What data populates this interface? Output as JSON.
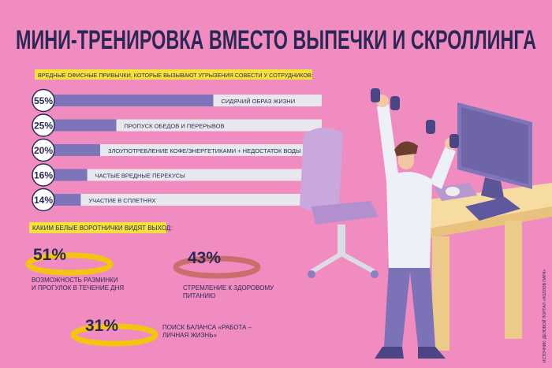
{
  "title": "МИНИ-ТРЕНИРОВКА ВМЕСТО ВЫПЕЧКИ И СКРОЛЛИНГА",
  "source": "ИСТОЧНИК: ДЕЛОВОЙ ПОРТАЛ «ХОЛЛОВ.ПАРК»",
  "chart_data": [
    {
      "type": "bar",
      "subtitle": "ВРЕДНЫЕ ОФИСНЫЕ ПРИВЫЧКИ, КОТОРЫЕ ВЫЗЫВАЮТ УГРЫЗЕНИЯ СОВЕСТИ У СОТРУДНИКОВ:",
      "categories": [
        "СИДЯЧИЙ ОБРАЗ ЖИЗНИ",
        "ПРОПУСК ОБЕДОВ И ПЕРЕРЫВОВ",
        "ЗЛОУПОТРЕБЛЕНИЕ КОФЕ/ЭНЕРГЕТИКАМИ + НЕДОСТАТОК ВОДЫ",
        "ЧАСТЫЕ ВРЕДНЫЕ ПЕРЕКУСЫ",
        "УЧАСТИЕ В СПЛЕТНЯХ"
      ],
      "values": [
        55,
        25,
        20,
        16,
        14
      ],
      "value_labels": [
        "55%",
        "25%",
        "20%",
        "16%",
        "14%"
      ],
      "color": "#7d74b9"
    },
    {
      "type": "ring",
      "subtitle": "КАКИМ БЕЛЫЕ ВОРОТНИЧКИ ВИДЯТ ВЫХОД:",
      "categories": [
        [
          "ВОЗМОЖНОСТЬ РАЗМИНКИ",
          "И ПРОГУЛОК В ТЕЧЕНИЕ ДНЯ"
        ],
        [
          "СТРЕМЛЕНИЕ К ЗДОРОВОМУ",
          "ПИТАНИЮ"
        ],
        [
          "ПОИСК БАЛАНСА «РАБОТА –",
          "ЛИЧНАЯ ЖИЗНЬ»"
        ]
      ],
      "values": [
        51,
        43,
        31
      ],
      "value_labels": [
        "51%",
        "43%",
        "31%"
      ],
      "colors": [
        "#f3c511",
        "#c96e6c",
        "#f3c511"
      ]
    }
  ]
}
